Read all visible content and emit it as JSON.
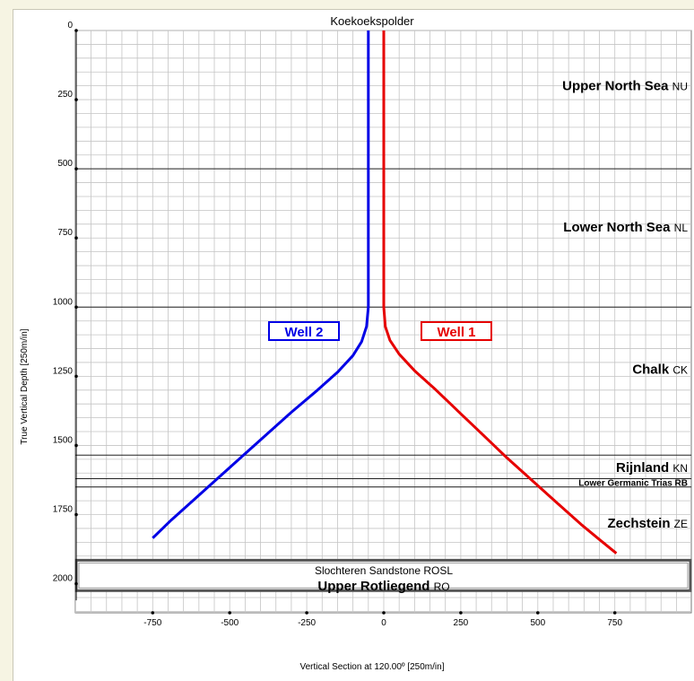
{
  "chart_data": {
    "type": "line",
    "title": "Koekoekspolder",
    "xlabel": "Vertical Section at 120.00º [250m/in]",
    "ylabel": "True Vertical Depth [250m/in]",
    "xlim": [
      -1000,
      1000
    ],
    "ylim": [
      0,
      2200
    ],
    "y_inverted": true,
    "x_ticks": [
      -750,
      -500,
      -250,
      0,
      250,
      500,
      750
    ],
    "y_ticks": [
      0,
      250,
      500,
      750,
      1000,
      1250,
      1500,
      1750,
      2000
    ],
    "grid": true,
    "series": [
      {
        "name": "Well 1",
        "color": "#e60000",
        "points": [
          [
            0,
            0
          ],
          [
            0,
            600
          ],
          [
            0,
            1000
          ],
          [
            5,
            1070
          ],
          [
            20,
            1120
          ],
          [
            50,
            1170
          ],
          [
            100,
            1230
          ],
          [
            170,
            1300
          ],
          [
            240,
            1375
          ],
          [
            320,
            1460
          ],
          [
            400,
            1545
          ],
          [
            480,
            1625
          ],
          [
            560,
            1705
          ],
          [
            640,
            1785
          ],
          [
            700,
            1840
          ],
          [
            755,
            1890
          ]
        ]
      },
      {
        "name": "Well 2",
        "color": "#0000e6",
        "points": [
          [
            -50,
            0
          ],
          [
            -50,
            600
          ],
          [
            -50,
            1000
          ],
          [
            -56,
            1070
          ],
          [
            -72,
            1125
          ],
          [
            -100,
            1175
          ],
          [
            -150,
            1235
          ],
          [
            -215,
            1300
          ],
          [
            -300,
            1380
          ],
          [
            -380,
            1460
          ],
          [
            -460,
            1540
          ],
          [
            -540,
            1620
          ],
          [
            -620,
            1700
          ],
          [
            -690,
            1770
          ],
          [
            -750,
            1835
          ]
        ]
      }
    ],
    "formations": [
      {
        "name": "Upper North Sea",
        "code": "NU",
        "depth_label": 200,
        "style": "big"
      },
      {
        "name": "Lower North Sea",
        "code": "NL",
        "depth_label": 710,
        "style": "big"
      },
      {
        "name": "Chalk",
        "code": "CK",
        "depth_label": 1225,
        "style": "big"
      },
      {
        "name": "Rijnland",
        "code": "KN",
        "depth_label": 1580,
        "style": "big"
      },
      {
        "name": "Lower Germanic Trias",
        "code": "RB",
        "depth_label": 1637,
        "style": "small"
      },
      {
        "name": "Zechstein",
        "code": "ZE",
        "depth_label": 1780,
        "style": "big"
      },
      {
        "name": "Slochteren Sandstone",
        "code": "ROSL",
        "depth_label": 1952,
        "style": "medium"
      },
      {
        "name": "Upper Rotliegend",
        "code": "RO",
        "depth_label": 2008,
        "style": "big"
      }
    ],
    "boundaries": [
      500,
      1000,
      1535,
      1620,
      1650
    ],
    "reservoir_box": {
      "top": 1915,
      "bottom": 2025
    },
    "legend": [
      {
        "label": "Well  2",
        "color": "#0000e6"
      },
      {
        "label": "Well  1",
        "color": "#e60000"
      }
    ]
  }
}
